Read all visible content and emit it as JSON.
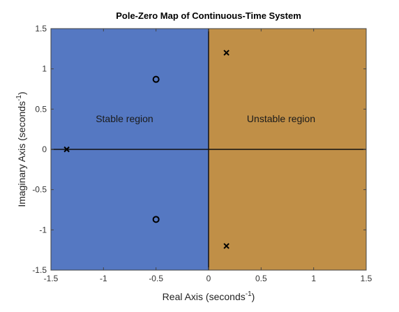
{
  "chart_data": {
    "type": "scatter",
    "title": "Pole-Zero Map of Continuous-Time System",
    "xlabel": "Real Axis (seconds",
    "ylabel": "Imaginary Axis (seconds",
    "label_exponent": "-1",
    "xlim": [
      -1.5,
      1.5
    ],
    "ylim": [
      -1.5,
      1.5
    ],
    "x_ticks": [
      "-1.5",
      "-1",
      "-0.5",
      "0",
      "0.5",
      "1",
      "1.5"
    ],
    "y_ticks": [
      "-1.5",
      "-1",
      "-0.5",
      "0",
      "0.5",
      "1",
      "1.5"
    ],
    "x_tick_values": [
      -1.5,
      -1,
      -0.5,
      0,
      0.5,
      1,
      1.5
    ],
    "y_tick_values": [
      -1.5,
      -1,
      -0.5,
      0,
      0.5,
      1,
      1.5
    ],
    "regions": [
      {
        "label": "Stable region",
        "x_range": [
          -1.5,
          0
        ],
        "color": "#5578c2",
        "label_at": [
          -0.8,
          0.34
        ]
      },
      {
        "label": "Unstable region",
        "x_range": [
          0,
          1.5
        ],
        "color": "#c08f47",
        "label_at": [
          0.69,
          0.34
        ]
      }
    ],
    "poles": [
      {
        "x": -1.35,
        "y": 0
      },
      {
        "x": 0.17,
        "y": 1.2
      },
      {
        "x": 0.17,
        "y": -1.2
      }
    ],
    "zeros": [
      {
        "x": -0.5,
        "y": 0.87
      },
      {
        "x": -0.5,
        "y": -0.87
      }
    ],
    "grid": false
  }
}
